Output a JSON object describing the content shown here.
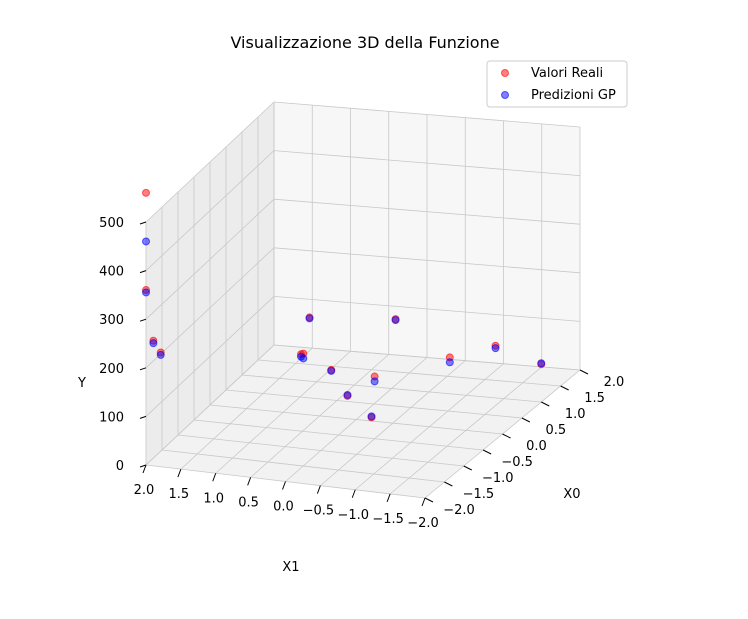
{
  "chart_data": {
    "type": "scatter",
    "title": "Visualizzazione 3D della Funzione",
    "xlabel": "X0",
    "ylabel": "X1",
    "zlabel": "Y",
    "xlim": [
      -2.0,
      2.0
    ],
    "ylim": [
      -2.0,
      2.0
    ],
    "zlim": [
      0,
      500
    ],
    "x_ticks": [
      "−2.0",
      "−1.5",
      "−1.0",
      "−0.5",
      "0.0",
      "0.5",
      "1.0",
      "1.5",
      "2.0"
    ],
    "y_ticks": [
      "2.0",
      "1.5",
      "1.0",
      "0.5",
      "0.0",
      "−0.5",
      "−1.0",
      "−1.5",
      "−2.0"
    ],
    "z_ticks": [
      "0",
      "100",
      "200",
      "300",
      "400",
      "500"
    ],
    "grid": true,
    "legend_position": "top-right",
    "series": [
      {
        "name": "Valori Reali",
        "color": "#ff0000",
        "points": [
          [
            0.5,
            0.5,
            3
          ],
          [
            0.8,
            0.9,
            30
          ],
          [
            -0.5,
            -0.4,
            40
          ],
          [
            1.5,
            1.6,
            80
          ],
          [
            -1.8,
            1.9,
            220
          ],
          [
            -1.9,
            1.95,
            250
          ],
          [
            -2.0,
            2.0,
            360
          ],
          [
            -2.0,
            2.0,
            560
          ],
          [
            1.9,
            -1.5,
            10
          ],
          [
            -1.0,
            -1.8,
            220
          ],
          [
            0.2,
            1.0,
            100
          ],
          [
            -1.5,
            -1.0,
            200
          ],
          [
            1.2,
            0.2,
            120
          ],
          [
            0.0,
            -1.9,
            180
          ],
          [
            -1.9,
            -0.2,
            260
          ]
        ]
      },
      {
        "name": "Predizioni GP",
        "color": "#0000ff",
        "points": [
          [
            0.5,
            0.5,
            5
          ],
          [
            0.8,
            0.9,
            28
          ],
          [
            -0.5,
            -0.4,
            42
          ],
          [
            1.5,
            1.6,
            78
          ],
          [
            -1.8,
            1.9,
            215
          ],
          [
            -1.9,
            1.95,
            245
          ],
          [
            -2.0,
            2.0,
            355
          ],
          [
            -2.0,
            2.0,
            460
          ],
          [
            1.9,
            -1.5,
            12
          ],
          [
            -1.0,
            -1.8,
            210
          ],
          [
            0.2,
            1.0,
            95
          ],
          [
            -1.5,
            -1.0,
            190
          ],
          [
            1.2,
            0.2,
            118
          ],
          [
            0.0,
            -1.9,
            175
          ],
          [
            -1.9,
            -0.2,
            250
          ]
        ]
      }
    ]
  }
}
